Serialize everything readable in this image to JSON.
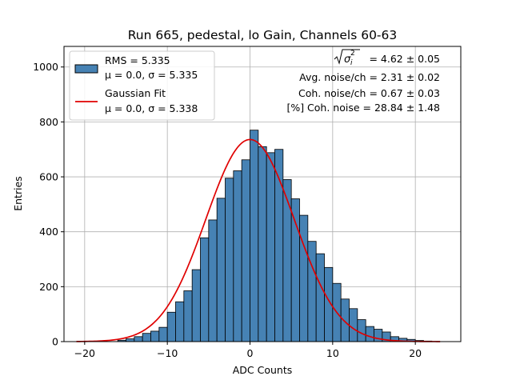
{
  "chart_data": {
    "type": "bar",
    "title": "Run 665, pedestal, lo Gain, Channels 60-63",
    "xlabel": "ADC Counts",
    "ylabel": "Entries",
    "xlim": [
      -22.5,
      25.5
    ],
    "ylim": [
      0,
      1075
    ],
    "xticks": [
      -20,
      -10,
      0,
      10,
      20
    ],
    "xtick_labels": [
      "−20",
      "−10",
      "0",
      "10",
      "20"
    ],
    "yticks": [
      0,
      200,
      400,
      600,
      800,
      1000
    ],
    "ytick_labels": [
      "0",
      "200",
      "400",
      "600",
      "800",
      "1000"
    ],
    "grid": true,
    "bar_color": "#4682b4",
    "fit_color": "#e00000",
    "bins": {
      "edges": [
        -21,
        -20,
        -19,
        -18,
        -17,
        -16,
        -15,
        -14,
        -13,
        -12,
        -11,
        -10,
        -9,
        -8,
        -7,
        -6,
        -5,
        -4,
        -3,
        -2,
        -1,
        0,
        1,
        2,
        3,
        4,
        5,
        6,
        7,
        8,
        9,
        10,
        11,
        12,
        13,
        14,
        15,
        16,
        17,
        18,
        19,
        20,
        21,
        22,
        23
      ],
      "counts": [
        0,
        0,
        0,
        0,
        0,
        5,
        10,
        18,
        30,
        38,
        52,
        107,
        145,
        185,
        262,
        378,
        443,
        522,
        595,
        622,
        662,
        770,
        710,
        688,
        700,
        590,
        520,
        460,
        365,
        320,
        270,
        212,
        155,
        120,
        80,
        55,
        45,
        35,
        18,
        12,
        8,
        4,
        2,
        0
      ]
    },
    "fit": {
      "mu": 0.0,
      "sigma": 5.338,
      "amplitude": 736
    },
    "legend": {
      "placement": "upper-left",
      "entries": [
        {
          "line1": "RMS = 5.335",
          "line2": "μ = 0.0, σ = 5.335"
        },
        {
          "line1": "Gaussian Fit",
          "line2": "μ = 0.0, σ = 5.338"
        }
      ]
    },
    "annotations": {
      "sigma_label": "= 4.62 ± 0.05",
      "avg_noise": "Avg. noise/ch = 2.31 ± 0.02",
      "coh_noise": "Coh. noise/ch = 0.67 ± 0.03",
      "coh_pct": "[%] Coh. noise = 28.84 ± 1.48"
    }
  }
}
